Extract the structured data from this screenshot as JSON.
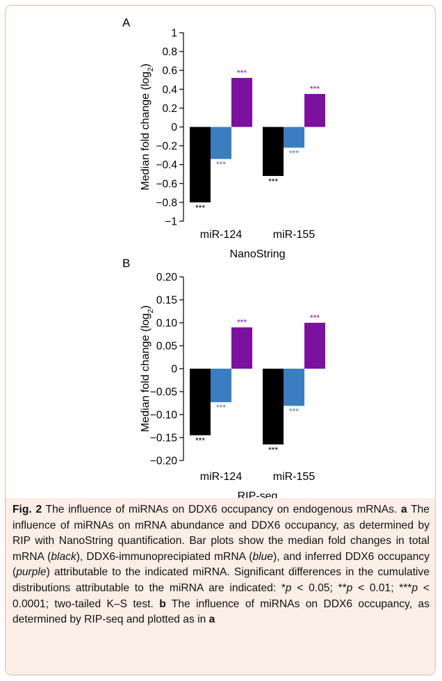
{
  "chart_data": [
    {
      "panel": "A",
      "type": "bar",
      "categories": [
        "miR-124",
        "miR-155"
      ],
      "xlabel": "NanoString",
      "ylabel": "Median fold change (log2)",
      "ylim": [
        -1,
        1
      ],
      "yticks": [
        "1",
        "0.8",
        "0.6",
        "0.4",
        "0.2",
        "0",
        "−0.2",
        "−0.4",
        "−0.6",
        "−0.8",
        "−1"
      ],
      "series": [
        {
          "color": "#000000",
          "values": [
            -0.8,
            -0.52
          ],
          "labels": [
            "***",
            "***"
          ]
        },
        {
          "color": "#3a7ec1",
          "values": [
            -0.34,
            -0.22
          ],
          "labels": [
            "***",
            "***"
          ]
        },
        {
          "color": "#7b119e",
          "values": [
            0.52,
            0.35
          ],
          "labels": [
            "***",
            "***"
          ]
        }
      ]
    },
    {
      "panel": "B",
      "type": "bar",
      "categories": [
        "miR-124",
        "miR-155"
      ],
      "xlabel": "RIP-seq",
      "ylabel": "Median fold change (log2)",
      "ylim": [
        -0.2,
        0.2
      ],
      "yticks": [
        "0.20",
        "0.15",
        "0.10",
        "0.05",
        "0",
        "−0.05",
        "−0.10",
        "−0.15",
        "−0.20"
      ],
      "series": [
        {
          "color": "#000000",
          "values": [
            -0.145,
            -0.165
          ],
          "labels": [
            "***",
            "***"
          ]
        },
        {
          "color": "#3a7ec1",
          "values": [
            -0.073,
            -0.081
          ],
          "labels": [
            "***",
            "***"
          ]
        },
        {
          "color": "#7b119e",
          "values": [
            0.09,
            0.1
          ],
          "labels": [
            "***",
            "***"
          ]
        }
      ]
    }
  ],
  "caption": {
    "fig_label": "Fig. 2",
    "t1": " The influence of miRNAs on DDX6 occupancy on endogenous mRNAs. ",
    "a": "a",
    "t2": " The influence of miRNAs on mRNA abundance and DDX6 occupancy, as determined by RIP with NanoString quantification. Bar plots show the median fold changes in total mRNA (",
    "black": "black",
    "t3": "), DDX6-immunoprecipiated mRNA (",
    "blue": "blue",
    "t4": "), and inferred DDX6 occupancy (",
    "purple": "purple",
    "t5": ") attributable to the indicated miRNA. Significant differences in the cumulative distributions attributable to the miRNA are indicated: *",
    "p1": "p",
    "t6": " < 0.05; **",
    "p2": "p",
    "t7": " < 0.01; ***",
    "p3": "p",
    "t8": " < 0.0001; two-tailed K–S test. ",
    "b": "b",
    "t9": " The influence of miRNAs on DDX6 occupancy, as determined by RIP-seq and plotted as in ",
    "a2": "a"
  }
}
